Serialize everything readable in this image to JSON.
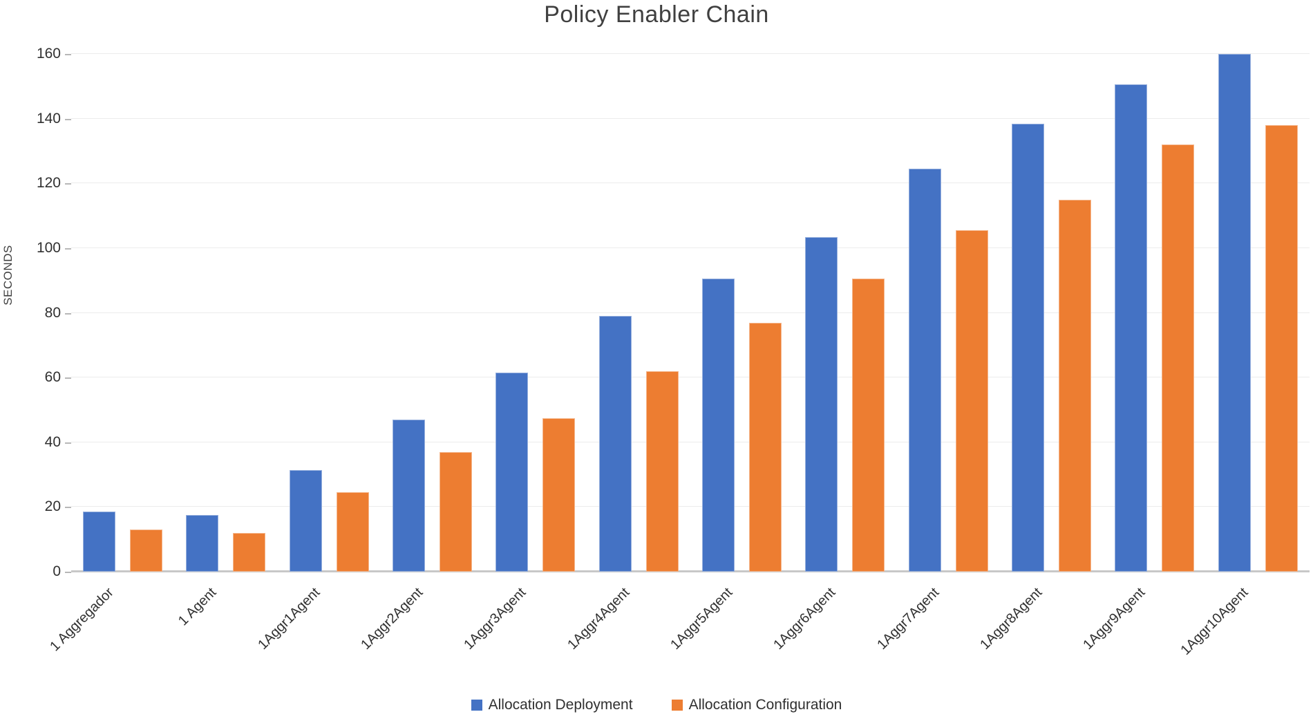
{
  "chart_data": {
    "type": "bar",
    "title": "Policy Enabler Chain",
    "xlabel": "",
    "ylabel": "SECONDS",
    "ylim": [
      0,
      160
    ],
    "ytick_step": 20,
    "yticks": [
      0,
      20,
      40,
      60,
      80,
      100,
      120,
      140,
      160
    ],
    "grid": true,
    "legend_position": "bottom",
    "categories": [
      "1 Aggregador",
      "1 Agent",
      "1Aggr1Agent",
      "1Aggr2Agent",
      "1Aggr3Agent",
      "1Aggr4Agent",
      "1Aggr5Agent",
      "1Aggr6Agent",
      "1Aggr7Agent",
      "1Aggr8Agent",
      "1Aggr9Agent",
      "1Aggr10Agent"
    ],
    "series": [
      {
        "name": "Allocation Deployment",
        "color": "#4472C4",
        "values": [
          18.5,
          17.5,
          31.5,
          47,
          61.5,
          79,
          90.5,
          103.5,
          124.5,
          138.5,
          150.5,
          160
        ]
      },
      {
        "name": "Allocation Configuration",
        "color": "#ED7D31",
        "values": [
          13,
          12,
          24.5,
          37,
          47.5,
          62,
          77,
          90.5,
          105.5,
          115,
          132,
          138
        ]
      }
    ]
  }
}
